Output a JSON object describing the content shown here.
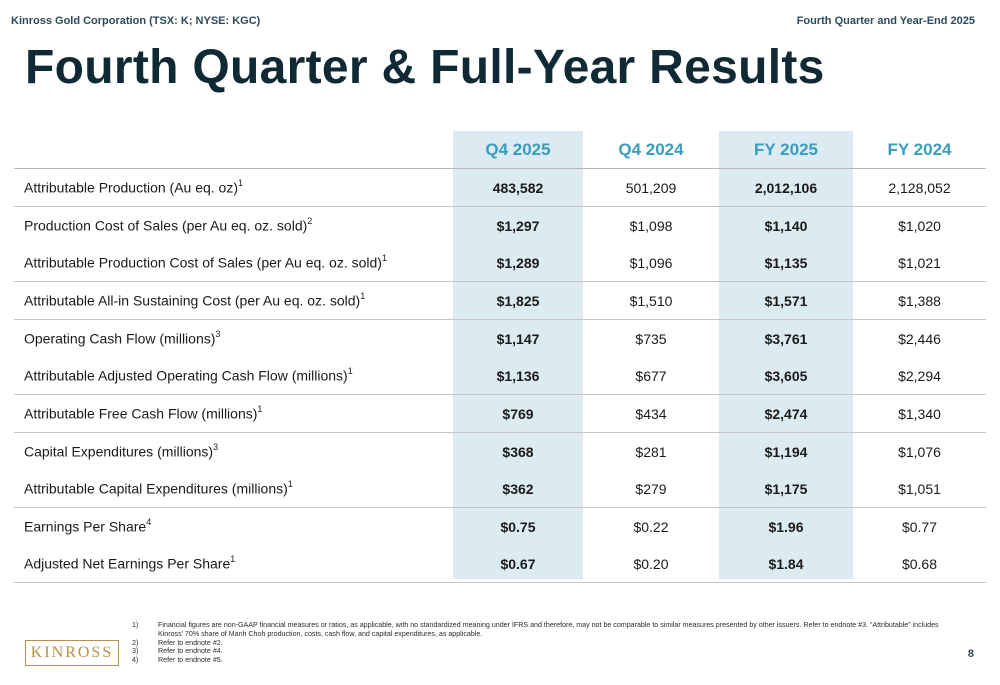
{
  "header": {
    "left": "Kinross Gold Corporation (TSX: K; NYSE: KGC)",
    "right": "Fourth Quarter and Year-End 2025"
  },
  "title": "Fourth Quarter & Full-Year Results",
  "table": {
    "columns": [
      "Q4 2025",
      "Q4 2024",
      "FY 2025",
      "FY 2024"
    ],
    "rows": [
      {
        "label": "Attributable Production (Au eq. oz)",
        "note": "1",
        "values": [
          "483,582",
          "501,209",
          "2,012,106",
          "2,128,052"
        ]
      },
      {
        "label": "Production Cost of Sales (per Au eq. oz. sold)",
        "note": "2",
        "values": [
          "$1,297",
          "$1,098",
          "$1,140",
          "$1,020"
        ]
      },
      {
        "label": "Attributable Production Cost of Sales (per Au eq. oz. sold)",
        "note": "1",
        "values": [
          "$1,289",
          "$1,096",
          "$1,135",
          "$1,021"
        ]
      },
      {
        "label": "Attributable All-in Sustaining Cost (per Au eq. oz. sold)",
        "note": "1",
        "values": [
          "$1,825",
          "$1,510",
          "$1,571",
          "$1,388"
        ]
      },
      {
        "label": "Operating Cash Flow (millions)",
        "note": "3",
        "values": [
          "$1,147",
          "$735",
          "$3,761",
          "$2,446"
        ]
      },
      {
        "label": "Attributable Adjusted Operating Cash Flow (millions)",
        "note": "1",
        "values": [
          "$1,136",
          "$677",
          "$3,605",
          "$2,294"
        ]
      },
      {
        "label": "Attributable Free Cash Flow (millions)",
        "note": "1",
        "values": [
          "$769",
          "$434",
          "$2,474",
          "$1,340"
        ]
      },
      {
        "label": "Capital Expenditures (millions)",
        "note": "3",
        "values": [
          "$368",
          "$281",
          "$1,194",
          "$1,076"
        ]
      },
      {
        "label": "Attributable Capital Expenditures (millions)",
        "note": "1",
        "values": [
          "$362",
          "$279",
          "$1,175",
          "$1,051"
        ]
      },
      {
        "label": "Earnings Per Share",
        "note": "4",
        "values": [
          "$0.75",
          "$0.22",
          "$1.96",
          "$0.77"
        ]
      },
      {
        "label": "Adjusted Net Earnings Per Share",
        "note": "1",
        "values": [
          "$0.67",
          "$0.20",
          "$1.84",
          "$0.68"
        ]
      }
    ]
  },
  "footnotes": [
    {
      "num": "1)",
      "text": "Financial figures are non-GAAP financial measures or ratios, as applicable, with no standardized meaning under IFRS and therefore, may not be comparable to similar measures presented by other issuers. Refer to endnote #3. “Attributable” includes Kinross’ 70% share of Manh Choh production, costs, cash flow, and capital expenditures, as applicable."
    },
    {
      "num": "2)",
      "text": "Refer to endnote #2."
    },
    {
      "num": "3)",
      "text": "Refer to endnote #4."
    },
    {
      "num": "4)",
      "text": "Refer to endnote #5."
    }
  ],
  "logo": {
    "text": "KINROSS"
  },
  "page_number": "8",
  "colors": {
    "title": "#0f2a35",
    "column_header": "#3a9dbd",
    "highlight_column": "#dcebf1",
    "logo_gold": "#b98f4a"
  }
}
